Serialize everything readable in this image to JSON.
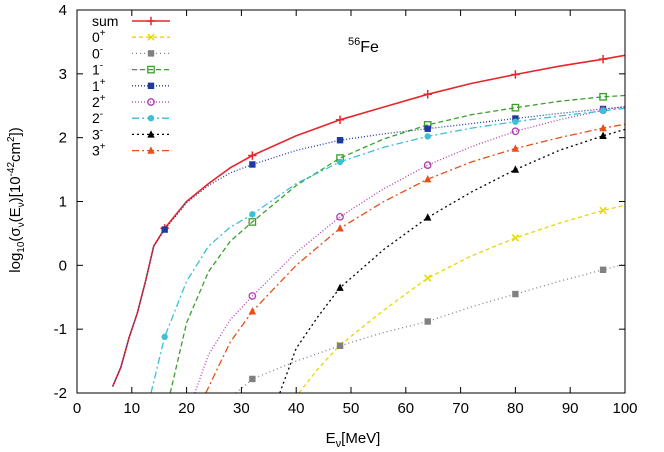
{
  "chart_data": {
    "type": "line",
    "annotation": {
      "isotope_mass": "56",
      "element": "Fe"
    },
    "xlabel": {
      "main": "E",
      "sub": "ν",
      "rest": "[MeV]"
    },
    "ylabel": {
      "p1": "log",
      "sub1": "10",
      "p2": "(σ",
      "sub2": "ν",
      "p3": "(E",
      "sub3": "ν",
      "p4": ")[10",
      "sup1": "-42",
      "p5": "cm",
      "sup2": "2",
      "p6": "])"
    },
    "xlim": [
      0,
      100
    ],
    "ylim": [
      -2,
      4
    ],
    "xticks": [
      0,
      10,
      20,
      30,
      40,
      50,
      60,
      70,
      80,
      90,
      100
    ],
    "yticks": [
      -2,
      -1,
      0,
      1,
      2,
      3,
      4
    ],
    "legend_position": "top-left",
    "series": [
      {
        "name": "sum",
        "sup": "",
        "color": "#e8262a",
        "dash": "",
        "marker": "plus",
        "x": [
          6.5,
          8,
          9.5,
          11,
          12.5,
          14,
          16,
          20,
          24,
          28,
          32,
          40,
          48,
          56,
          64,
          72,
          80,
          88,
          96,
          100
        ],
        "y": [
          -1.9,
          -1.6,
          -1.13,
          -0.75,
          -0.25,
          0.3,
          0.58,
          1.0,
          1.28,
          1.53,
          1.72,
          2.03,
          2.28,
          2.48,
          2.68,
          2.85,
          2.99,
          3.12,
          3.23,
          3.29
        ],
        "mx": [
          16,
          32,
          48,
          64,
          80,
          96
        ],
        "my": [
          0.58,
          1.72,
          2.28,
          2.68,
          2.99,
          3.23
        ]
      },
      {
        "name": "0",
        "sup": "+",
        "color": "#e6d800",
        "dash": "4,3",
        "marker": "cross",
        "x": [
          40.5,
          44,
          48,
          56,
          64,
          72,
          80,
          88,
          96,
          100
        ],
        "y": [
          -2.0,
          -1.62,
          -1.25,
          -0.7,
          -0.2,
          0.15,
          0.43,
          0.66,
          0.86,
          0.94
        ],
        "mx": [
          48,
          64,
          80,
          96
        ],
        "my": [
          -1.25,
          -0.2,
          0.43,
          0.86
        ]
      },
      {
        "name": "0",
        "sup": "-",
        "color": "#808080",
        "dash": "1,3",
        "marker": "square-filled",
        "x": [
          29,
          32,
          40,
          48,
          56,
          64,
          72,
          80,
          88,
          96,
          100
        ],
        "y": [
          -2.0,
          -1.78,
          -1.5,
          -1.26,
          -1.05,
          -0.88,
          -0.65,
          -0.45,
          -0.25,
          -0.07,
          0.02
        ],
        "mx": [
          32,
          48,
          64,
          80,
          96
        ],
        "my": [
          -1.78,
          -1.26,
          -0.88,
          -0.45,
          -0.07
        ]
      },
      {
        "name": "1",
        "sup": "-",
        "color": "#3aa02a",
        "dash": "5,3",
        "marker": "square-open",
        "x": [
          17,
          20,
          24,
          28,
          32,
          40,
          48,
          56,
          64,
          72,
          80,
          88,
          96,
          100
        ],
        "y": [
          -2.0,
          -0.9,
          -0.1,
          0.38,
          0.68,
          1.25,
          1.68,
          1.98,
          2.2,
          2.36,
          2.47,
          2.57,
          2.64,
          2.66
        ],
        "mx": [
          32,
          48,
          64,
          80,
          96
        ],
        "my": [
          0.68,
          1.68,
          2.2,
          2.47,
          2.64
        ]
      },
      {
        "name": "1",
        "sup": "+",
        "color": "#1e3a9e",
        "dash": "1,2",
        "marker": "square-filled",
        "x": [
          6.5,
          8,
          9.5,
          11,
          12.5,
          14,
          16,
          20,
          24,
          28,
          32,
          40,
          48,
          56,
          64,
          72,
          80,
          88,
          96,
          100
        ],
        "y": [
          -1.9,
          -1.6,
          -1.13,
          -0.75,
          -0.25,
          0.3,
          0.56,
          0.98,
          1.25,
          1.45,
          1.58,
          1.8,
          1.96,
          2.06,
          2.14,
          2.22,
          2.3,
          2.38,
          2.45,
          2.48
        ],
        "mx": [
          16,
          32,
          48,
          64,
          80,
          96
        ],
        "my": [
          0.56,
          1.58,
          1.96,
          2.14,
          2.3,
          2.45
        ]
      },
      {
        "name": "2",
        "sup": "+",
        "color": "#b03ab0",
        "dash": "1,2",
        "marker": "circle-open",
        "x": [
          21.5,
          24,
          28,
          32,
          40,
          48,
          56,
          64,
          72,
          80,
          88,
          96,
          100
        ],
        "y": [
          -2.0,
          -1.4,
          -0.85,
          -0.48,
          0.2,
          0.76,
          1.2,
          1.57,
          1.86,
          2.1,
          2.28,
          2.43,
          2.49
        ],
        "mx": [
          32,
          48,
          64,
          80,
          96
        ],
        "my": [
          -0.48,
          0.76,
          1.57,
          2.1,
          2.43
        ]
      },
      {
        "name": "2",
        "sup": "-",
        "color": "#3cc0d6",
        "dash": "7,3,2,3",
        "marker": "circle-filled",
        "x": [
          13.5,
          16,
          20,
          24,
          28,
          32,
          40,
          48,
          56,
          64,
          72,
          80,
          88,
          96,
          100
        ],
        "y": [
          -2.0,
          -1.12,
          -0.25,
          0.3,
          0.6,
          0.8,
          1.28,
          1.62,
          1.85,
          2.02,
          2.15,
          2.25,
          2.34,
          2.42,
          2.46
        ],
        "mx": [
          16,
          32,
          48,
          64,
          80,
          96
        ],
        "my": [
          -1.12,
          0.8,
          1.62,
          2.02,
          2.25,
          2.42
        ]
      },
      {
        "name": "3",
        "sup": "-",
        "color": "#000000",
        "dash": "2,3",
        "marker": "triangle-filled",
        "x": [
          37,
          40,
          44,
          48,
          56,
          64,
          72,
          80,
          88,
          96,
          100
        ],
        "y": [
          -2.0,
          -1.3,
          -0.8,
          -0.35,
          0.25,
          0.75,
          1.15,
          1.5,
          1.8,
          2.03,
          2.13
        ],
        "mx": [
          48,
          64,
          80,
          96
        ],
        "my": [
          -0.35,
          0.75,
          1.5,
          2.03
        ]
      },
      {
        "name": "3",
        "sup": "+",
        "color": "#e8501a",
        "dash": "7,3,2,3",
        "marker": "triangle-filled",
        "x": [
          23.5,
          26,
          28,
          32,
          40,
          48,
          56,
          64,
          72,
          80,
          88,
          96,
          100
        ],
        "y": [
          -2.0,
          -1.55,
          -1.2,
          -0.72,
          0.0,
          0.58,
          1.0,
          1.35,
          1.62,
          1.83,
          2.0,
          2.15,
          2.21
        ],
        "mx": [
          32,
          48,
          64,
          80,
          96
        ],
        "my": [
          -0.72,
          0.58,
          1.35,
          1.83,
          2.15
        ]
      }
    ]
  }
}
